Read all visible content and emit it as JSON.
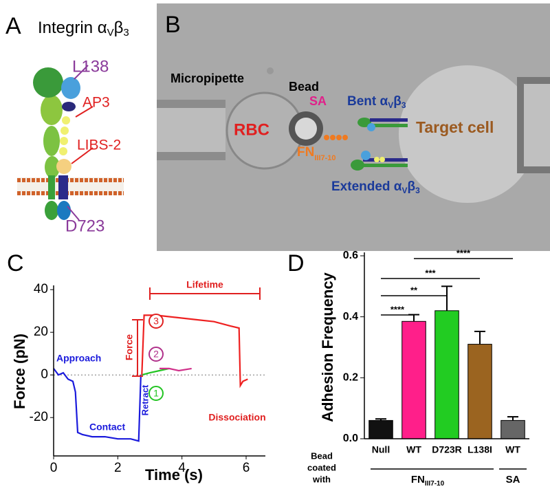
{
  "panel_a": {
    "letter": "A",
    "title": [
      "Integrin α",
      "V",
      "β",
      "3"
    ],
    "labels": [
      "L138",
      "AP3",
      "LIBS-2",
      "D723"
    ]
  },
  "panel_b": {
    "letter": "B",
    "micropipette": "Micropipette",
    "bead": "Bead",
    "sa": "SA",
    "rbc": "RBC",
    "bent": [
      "Bent α",
      "V",
      "β",
      "3"
    ],
    "fn": [
      "FN",
      "III7-10"
    ],
    "target": "Target cell",
    "extended": [
      "Extended α",
      "V",
      "β",
      "3"
    ]
  },
  "chart_data": [
    {
      "type": "line",
      "letter": "C",
      "xlabel": "Time (s)",
      "ylabel": "Force (pN)",
      "xlim": [
        0,
        6.6
      ],
      "ylim": [
        -38,
        42
      ],
      "xticks": [
        0,
        2,
        4,
        6
      ],
      "yticks": [
        -20,
        0,
        20,
        40
      ],
      "series": [
        {
          "color": "#1a1adc",
          "x": [
            0,
            0.15,
            0.3,
            0.45,
            0.6,
            0.68,
            0.75,
            0.9,
            1.2,
            1.6,
            2.0,
            2.4,
            2.65,
            2.72
          ],
          "values": [
            3,
            0,
            1,
            -2,
            -3,
            -8,
            -27,
            -28,
            -29,
            -29,
            -30,
            -30,
            -31,
            0
          ]
        },
        {
          "color": "#22c422",
          "x": [
            2.75,
            3.0,
            3.3,
            3.6
          ],
          "values": [
            0,
            1,
            2,
            3
          ]
        },
        {
          "color": "#d0308a",
          "x": [
            3.3,
            3.6,
            3.9,
            4.3
          ],
          "values": [
            3,
            3,
            2,
            3
          ]
        },
        {
          "color": "#ee2020",
          "x": [
            2.75,
            2.82,
            3.2,
            3.8,
            4.4,
            5.0,
            5.5,
            5.78,
            5.82,
            5.9,
            6.05
          ],
          "values": [
            0,
            28,
            28,
            27,
            26,
            25,
            23,
            22,
            -5,
            -3,
            -2
          ]
        }
      ],
      "annotations": {
        "approach": "Approach",
        "contact": "Contact",
        "retract": "Retract",
        "force": "Force",
        "lifetime": "Lifetime",
        "dissociation": "Dissociation",
        "circles": [
          "3",
          "2",
          "1"
        ]
      }
    },
    {
      "type": "bar",
      "letter": "D",
      "ylabel": "Adhesion Frequency",
      "categories": [
        "Null",
        "WT",
        "D723R",
        "L138I",
        "WT"
      ],
      "values": [
        0.06,
        0.385,
        0.42,
        0.31,
        0.06
      ],
      "errors": [
        0.005,
        0.022,
        0.08,
        0.042,
        0.012
      ],
      "colors": [
        "#111111",
        "#ff1f8a",
        "#22cc22",
        "#9b6420",
        "#666666"
      ],
      "ylim": [
        0,
        0.6
      ],
      "yticks": [
        {
          "value": 0,
          "label": "0.0"
        },
        0.2,
        0.4,
        0.6
      ],
      "significance": [
        "****",
        "**",
        "***",
        "****"
      ],
      "group_title": [
        "Bead",
        "coated",
        "with"
      ],
      "groups": [
        [
          "FN",
          "III7-10"
        ],
        "SA"
      ]
    }
  ]
}
